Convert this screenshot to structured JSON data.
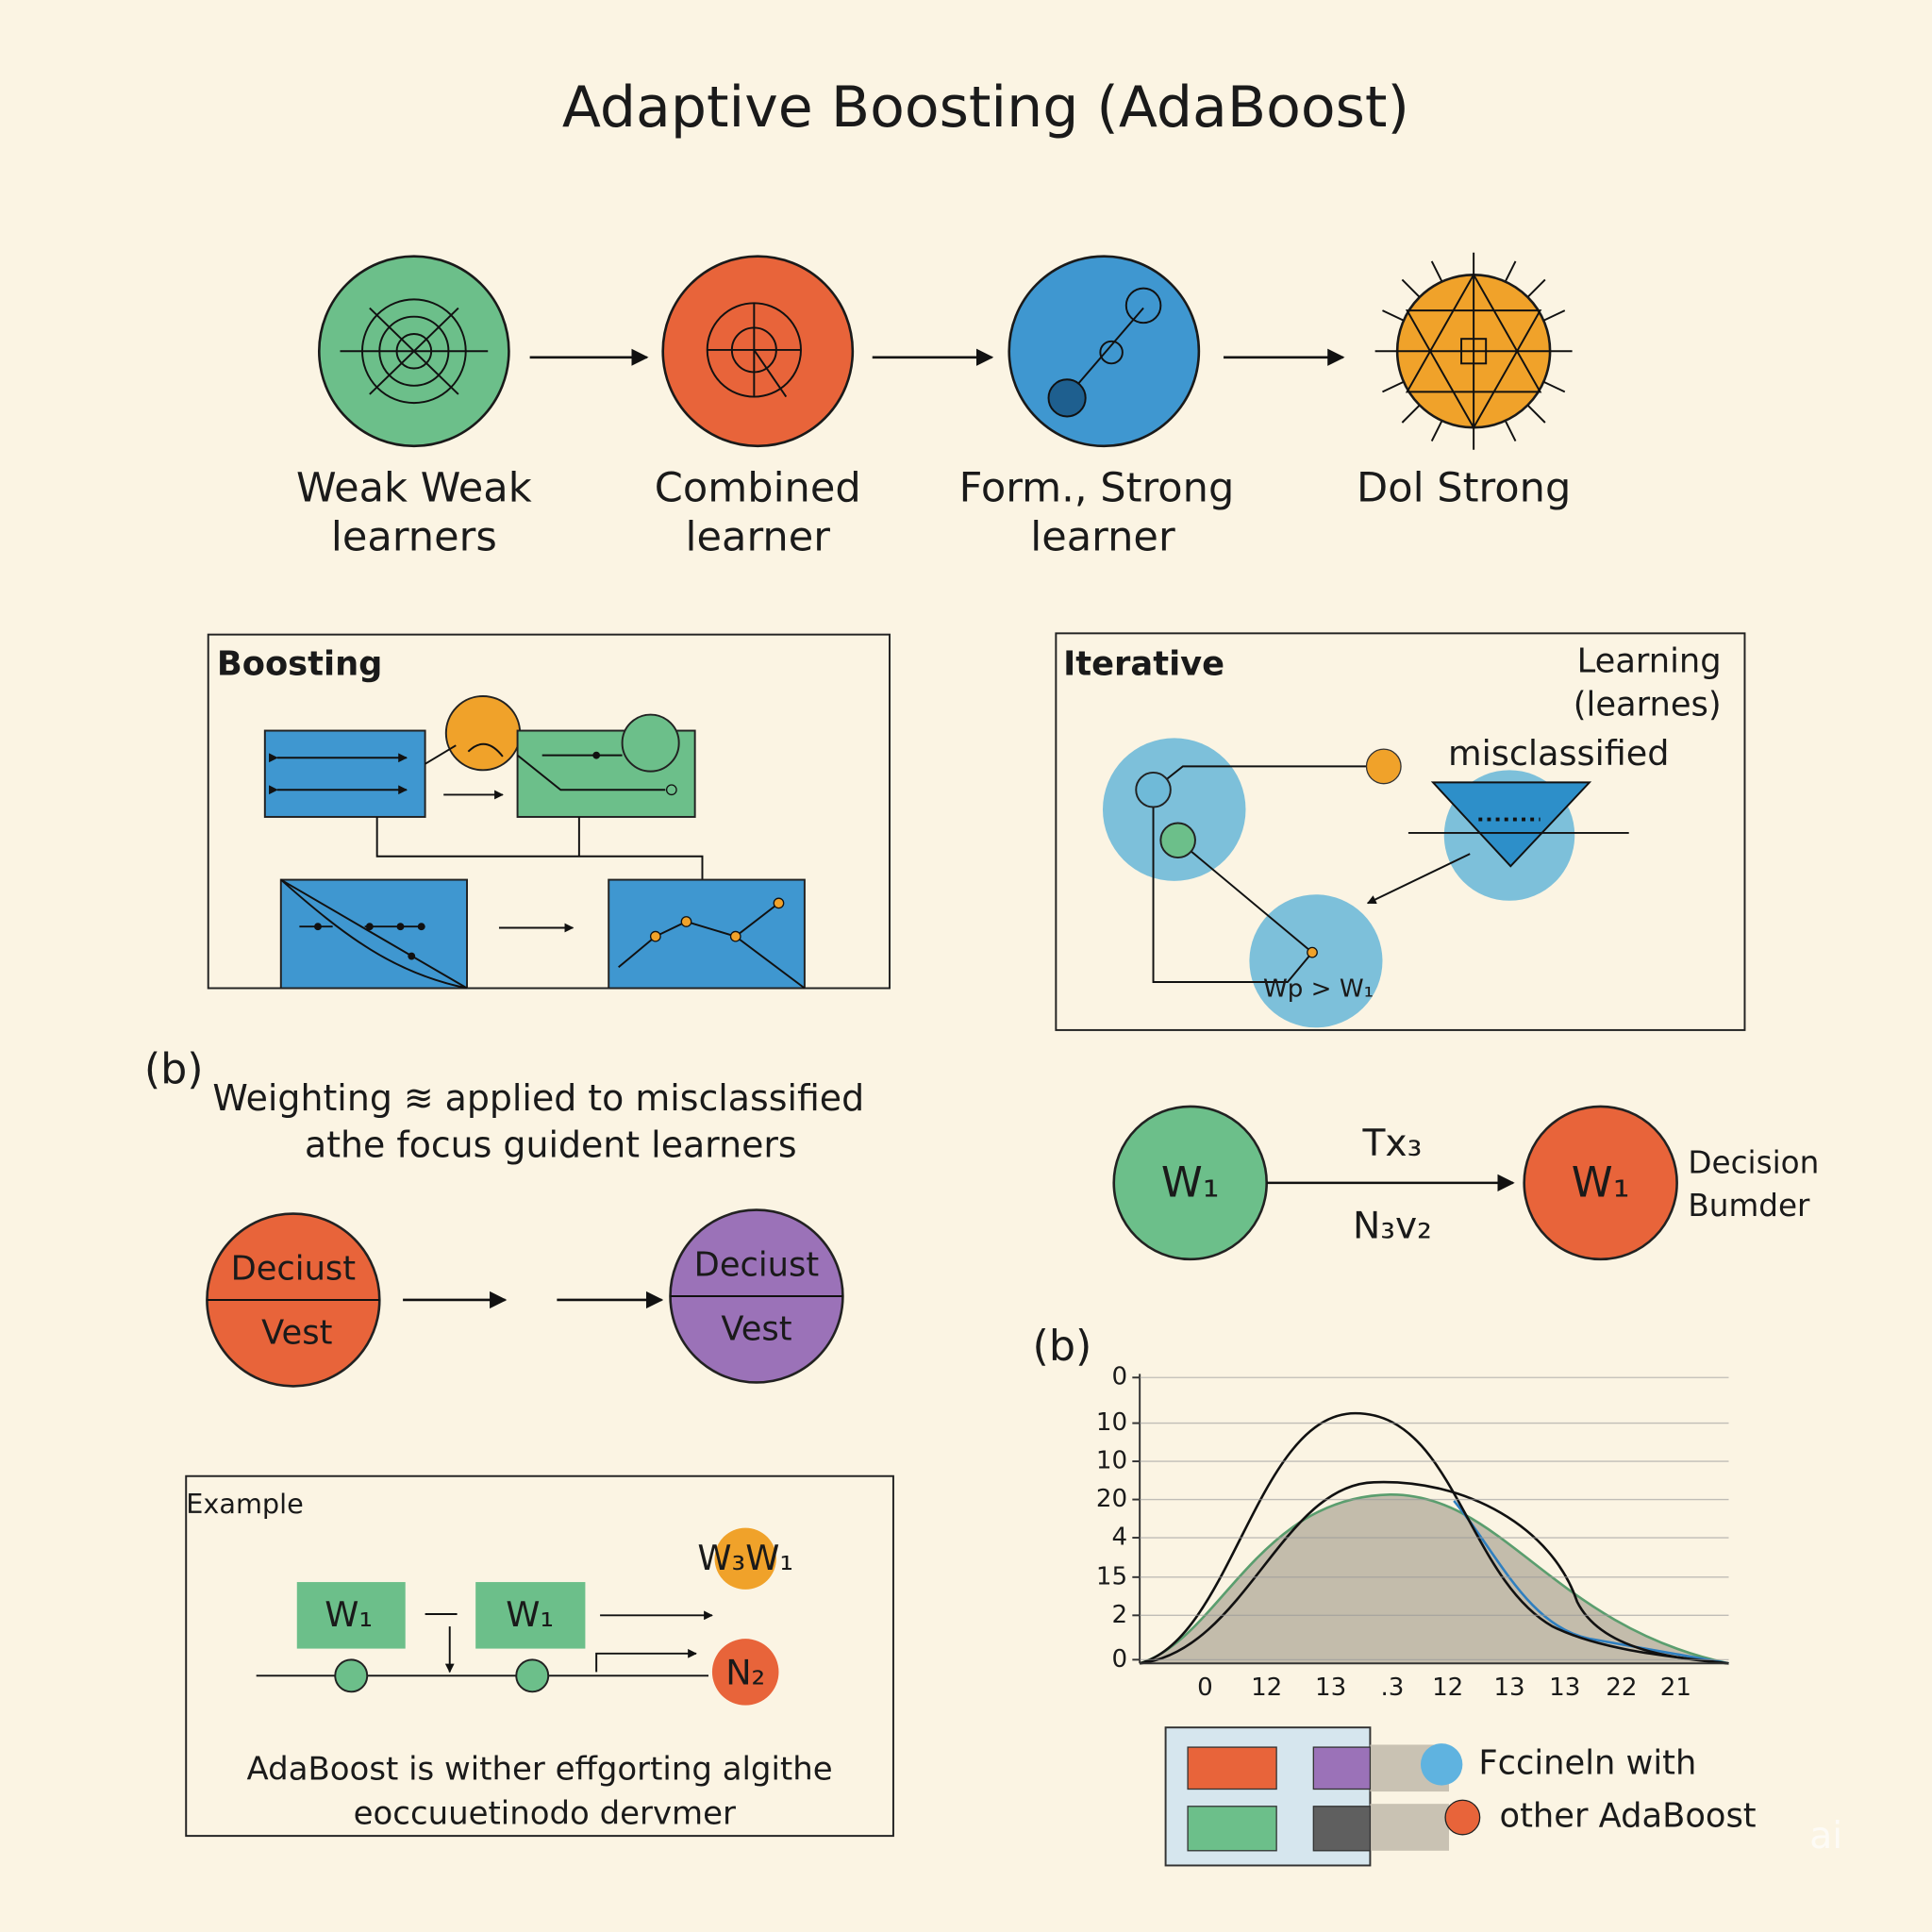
{
  "title": "Adaptive Boosting (AdaBoost)",
  "flow": {
    "steps": [
      {
        "lines": [
          "Weak Weak",
          "learners"
        ]
      },
      {
        "lines": [
          "Combined",
          "learner"
        ]
      },
      {
        "lines": [
          "Form., Strong",
          "learner"
        ]
      },
      {
        "lines": [
          "Dol Strong"
        ]
      }
    ]
  },
  "boosting_panel": {
    "title": "Boosting"
  },
  "iterative_panel": {
    "title": "Iterative",
    "note": [
      "Learning",
      "(learnes)"
    ],
    "label": "misclassified",
    "weight_label": "Wp > W₁"
  },
  "weighting": {
    "marker": "(b)",
    "lines": [
      "Weighting ≋ applied to misclassified",
      "athe focus guident learners"
    ],
    "circles": [
      {
        "top": "Deciust",
        "bottom": "Vest"
      },
      {
        "top": "Deciust",
        "bottom": "Vest"
      }
    ]
  },
  "transition": {
    "from": "W₁",
    "to": "W₁",
    "top_label": "Tx₃",
    "bottom_label": "N₃v₂",
    "note": [
      "Decision",
      "Bumder"
    ]
  },
  "example": {
    "title": "Example",
    "boxes": [
      "W₁",
      "W₁"
    ],
    "weights": "W₃W₁",
    "node": "N₂",
    "caption": [
      "AdaBoost is wither effgorting algithe",
      "eoccuuetinodo dervmer"
    ]
  },
  "plot": {
    "marker": "(b)",
    "y_labels": [
      "0",
      "10",
      "10",
      "20",
      "4",
      "15",
      "2",
      "0"
    ],
    "x_labels": [
      "0",
      "12",
      "13",
      ".3",
      "12",
      "13",
      "13",
      "22",
      "21"
    ],
    "legend": [
      "Fccineln with",
      "other AdaBoost"
    ]
  },
  "watermark": "ai"
}
